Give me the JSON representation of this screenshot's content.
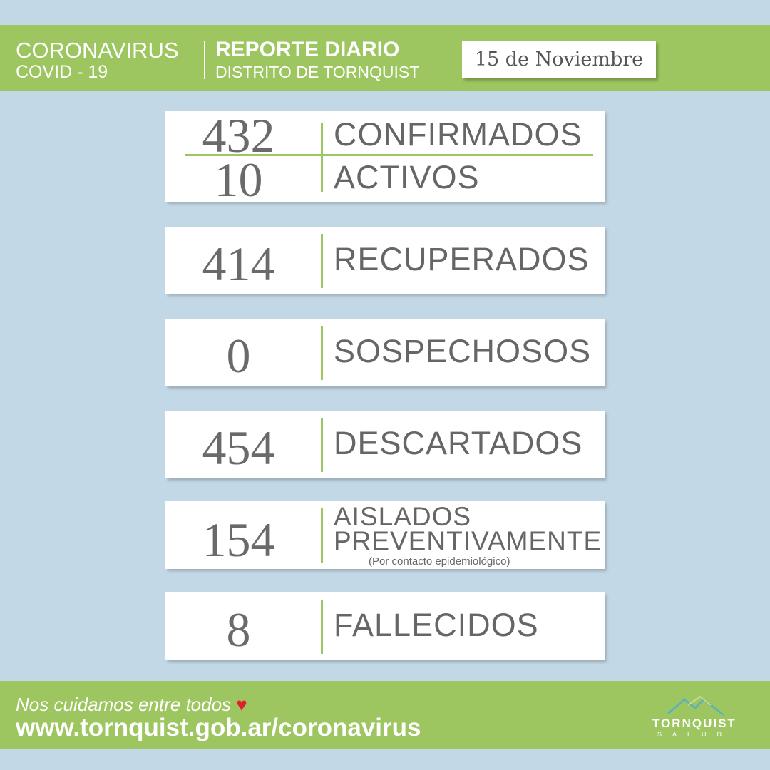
{
  "header": {
    "title": "CORONAVIRUS",
    "subtitle": "COVID - 19",
    "report": "REPORTE DIARIO",
    "district": "DISTRITO DE TORNQUIST",
    "date": "15 de Noviembre"
  },
  "stats": {
    "confirmados": {
      "value": "432",
      "label": "CONFIRMADOS"
    },
    "activos": {
      "value": "10",
      "label": "ACTIVOS"
    },
    "recuperados": {
      "value": "414",
      "label": "RECUPERADOS"
    },
    "sospechosos": {
      "value": "0",
      "label": "SOSPECHOSOS"
    },
    "descartados": {
      "value": "454",
      "label": "DESCARTADOS"
    },
    "aislados": {
      "value": "154",
      "label1": "AISLADOS",
      "label2": "PREVENTIVAMENTE",
      "note": "(Por contacto epidemiológico)"
    },
    "fallecidos": {
      "value": "8",
      "label": "FALLECIDOS"
    }
  },
  "footer": {
    "slogan": "Nos cuidamos entre todos",
    "url": "www.tornquist.gob.ar/coronavirus",
    "logo": "TORNQUIST",
    "logo_sub": "SALUD"
  },
  "colors": {
    "green": "#9dc660",
    "background": "#c3d8e6",
    "heart": "#e0202a"
  }
}
